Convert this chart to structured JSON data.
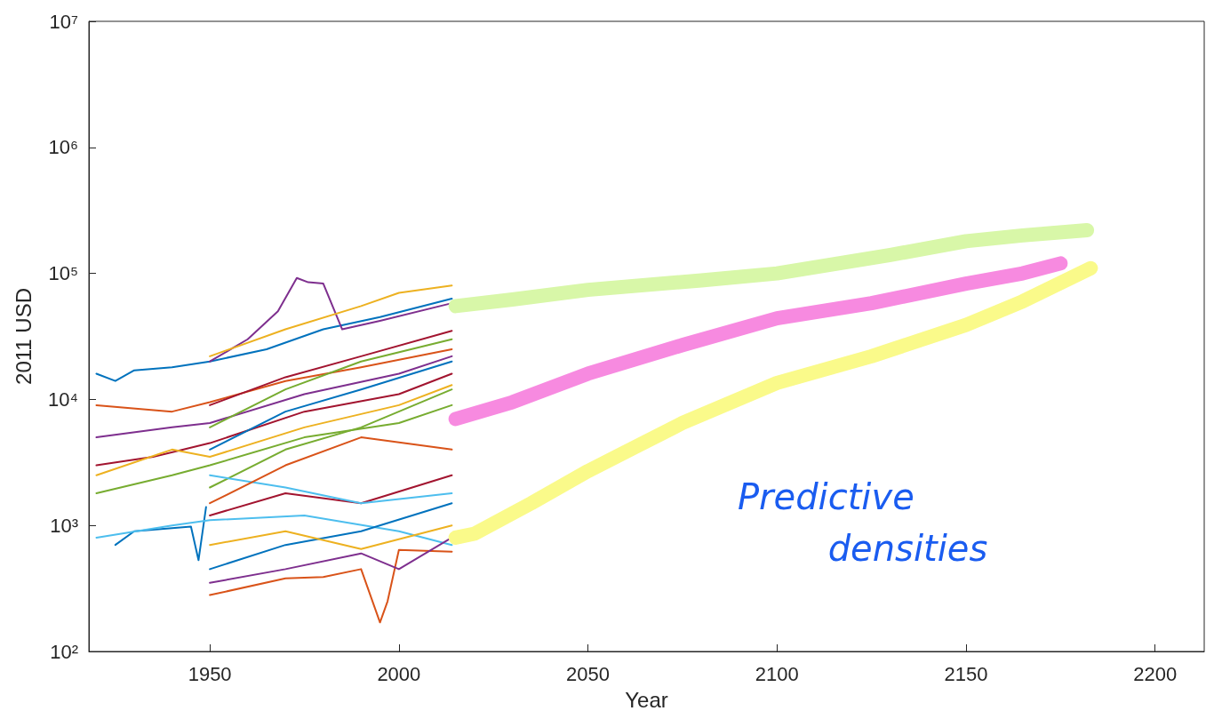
{
  "chart_data": {
    "type": "line",
    "xlabel": "Year",
    "ylabel": "2011 USD",
    "log": "y",
    "marker": "none",
    "line_style": "solid",
    "xlim": [
      1918,
      2213
    ],
    "xticks": [
      1950,
      2000,
      2050,
      2100,
      2150,
      2200
    ],
    "ylim": [
      100,
      10000000
    ],
    "yticks": [
      {
        "value": 100,
        "label": "10²"
      },
      {
        "value": 1000,
        "label": "10³"
      },
      {
        "value": 10000,
        "label": "10⁴"
      },
      {
        "value": 100000,
        "label": "10⁵"
      },
      {
        "value": 1000000,
        "label": "10⁶"
      },
      {
        "value": 10000000,
        "label": "10⁷"
      }
    ],
    "annotations": [
      "Predictive densities"
    ],
    "series": [
      {
        "color": "#d8f7a8",
        "x": [
          2015,
          2030,
          2050,
          2080,
          2100,
          2130,
          2150,
          2165,
          2182
        ],
        "values": [
          55000,
          62000,
          74000,
          88000,
          100000,
          140000,
          180000,
          200000,
          220000
        ]
      },
      {
        "color": "#f78ae0",
        "x": [
          2015,
          2030,
          2050,
          2075,
          2100,
          2125,
          2150,
          2165,
          2175
        ],
        "values": [
          7000,
          9500,
          16000,
          27000,
          44000,
          58000,
          83000,
          100000,
          120000
        ]
      },
      {
        "color": "#fafa8a",
        "x": [
          2015,
          2020,
          2035,
          2050,
          2075,
          2100,
          2125,
          2150,
          2165,
          2183
        ],
        "values": [
          800,
          860,
          1500,
          2700,
          6500,
          13500,
          22000,
          39000,
          60000,
          110000
        ]
      },
      {
        "color": "#0072bd",
        "x": [
          1920,
          1925,
          1930,
          1940,
          1950,
          1965,
          1980,
          1995,
          2014
        ],
        "values": [
          16000,
          14000,
          17000,
          18000,
          20000,
          25000,
          36000,
          45000,
          63000
        ]
      },
      {
        "color": "#7e2f8e",
        "x": [
          1950,
          1960,
          1968,
          1973,
          1976,
          1980,
          1985,
          1995,
          2014
        ],
        "values": [
          20000,
          30000,
          50000,
          92000,
          85000,
          83000,
          36000,
          42000,
          58000
        ]
      },
      {
        "color": "#edb120",
        "x": [
          1950,
          1970,
          1990,
          2000,
          2014
        ],
        "values": [
          22000,
          36000,
          55000,
          70000,
          80000
        ]
      },
      {
        "color": "#d95319",
        "x": [
          1950,
          1970,
          1980,
          1990,
          1995,
          1997,
          2000,
          2014
        ],
        "values": [
          280,
          380,
          390,
          450,
          170,
          250,
          640,
          620
        ]
      },
      {
        "color": "#0072bd",
        "x": [
          1925,
          1930,
          1940,
          1945,
          1947,
          1949
        ],
        "values": [
          700,
          900,
          950,
          980,
          530,
          1400
        ]
      },
      {
        "color": "#d95319",
        "x": [
          1920,
          1940,
          1950,
          1970,
          1990,
          2014
        ],
        "values": [
          9000,
          8000,
          9500,
          14000,
          18000,
          25000
        ]
      },
      {
        "color": "#a2142f",
        "x": [
          1920,
          1935,
          1950,
          1975,
          2000,
          2014
        ],
        "values": [
          3000,
          3500,
          4500,
          8000,
          11000,
          16000
        ]
      },
      {
        "color": "#77ac30",
        "x": [
          1920,
          1940,
          1950,
          1975,
          2000,
          2014
        ],
        "values": [
          1800,
          2500,
          3000,
          5000,
          6500,
          9000
        ]
      },
      {
        "color": "#4dbeee",
        "x": [
          1920,
          1940,
          1950,
          1975,
          2000,
          2014
        ],
        "values": [
          800,
          1000,
          1100,
          1200,
          900,
          700
        ]
      },
      {
        "color": "#edb120",
        "x": [
          1920,
          1940,
          1950,
          1975,
          2000,
          2014
        ],
        "values": [
          2500,
          4000,
          3500,
          6000,
          9000,
          13000
        ]
      },
      {
        "color": "#7e2f8e",
        "x": [
          1920,
          1940,
          1950,
          1975,
          2000,
          2014
        ],
        "values": [
          5000,
          6000,
          6500,
          11000,
          16000,
          22000
        ]
      },
      {
        "color": "#0072bd",
        "x": [
          1950,
          1970,
          1990,
          2014
        ],
        "values": [
          450,
          700,
          900,
          1500
        ]
      },
      {
        "color": "#a2142f",
        "x": [
          1950,
          1970,
          1990,
          2014
        ],
        "values": [
          1200,
          1800,
          1500,
          2500
        ]
      },
      {
        "color": "#77ac30",
        "x": [
          1950,
          1970,
          1990,
          2014
        ],
        "values": [
          2000,
          4000,
          6000,
          12000
        ]
      },
      {
        "color": "#4dbeee",
        "x": [
          1950,
          1970,
          1990,
          2014
        ],
        "values": [
          2500,
          2000,
          1500,
          1800
        ]
      },
      {
        "color": "#d95319",
        "x": [
          1950,
          1970,
          1990,
          2014
        ],
        "values": [
          1500,
          3000,
          5000,
          4000
        ]
      },
      {
        "color": "#edb120",
        "x": [
          1950,
          1970,
          1990,
          2014
        ],
        "values": [
          700,
          900,
          650,
          1000
        ]
      },
      {
        "color": "#7e2f8e",
        "x": [
          1950,
          1970,
          1990,
          2000,
          2014
        ],
        "values": [
          350,
          450,
          600,
          450,
          800
        ]
      },
      {
        "color": "#0072bd",
        "x": [
          1950,
          1970,
          1990,
          2014
        ],
        "values": [
          4000,
          8000,
          12000,
          20000
        ]
      },
      {
        "color": "#a2142f",
        "x": [
          1950,
          1970,
          1990,
          2014
        ],
        "values": [
          9000,
          15000,
          22000,
          35000
        ]
      },
      {
        "color": "#77ac30",
        "x": [
          1950,
          1970,
          1990,
          2014
        ],
        "values": [
          6000,
          12000,
          20000,
          30000
        ]
      }
    ]
  }
}
